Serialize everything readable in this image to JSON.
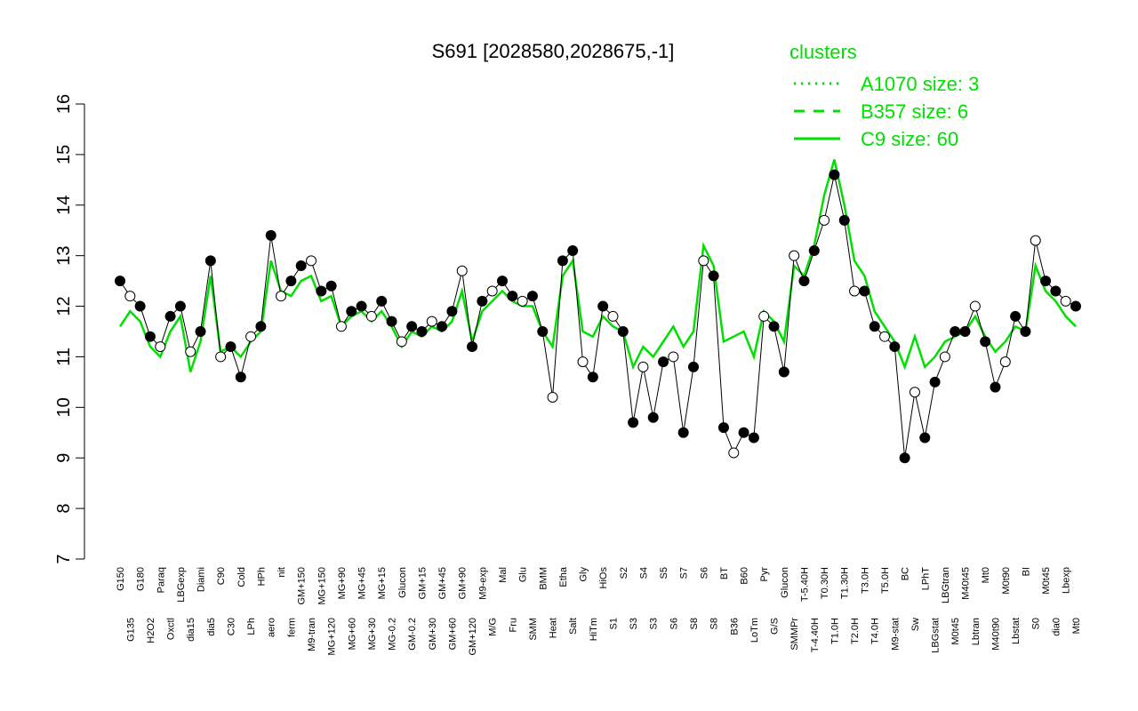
{
  "chart_data": {
    "type": "line",
    "title": "S691 [2028580,2028675,-1]",
    "legend_title": "clusters",
    "legend": [
      {
        "name": "A1070 size: 3",
        "dash": "2,6"
      },
      {
        "name": "B357 size: 6",
        "dash": "12,10"
      },
      {
        "name": "C9 size: 60",
        "dash": "none"
      }
    ],
    "legend_color": "#00e000",
    "ylim": [
      7,
      16
    ],
    "yticks": [
      7,
      8,
      9,
      10,
      11,
      12,
      13,
      14,
      15,
      16
    ],
    "categories": [
      "G150",
      "G135",
      "G180",
      "H2O2",
      "Paraq",
      "Oxctl",
      "LBGexp",
      "dia15",
      "Diami",
      "dia5",
      "C90",
      "C30",
      "Cold",
      "LPh",
      "HPh",
      "aero",
      "nit",
      "ferm",
      "GM+150",
      "M9-tran",
      "MG+150",
      "MG+120",
      "MG+90",
      "MG+60",
      "MG+45",
      "MG+30",
      "MG+15",
      "MG-0.2",
      "Glucon",
      "GM-0.2",
      "GM+15",
      "GM+30",
      "GM+45",
      "GM+60",
      "GM+90",
      "GM+120",
      "M9-exp",
      "M/G",
      "Mal",
      "Fru",
      "Glu",
      "SMM",
      "BMM",
      "Heat",
      "Etha",
      "Salt",
      "Gly",
      "HiTm",
      "HiOs",
      "S1",
      "S2",
      "S3",
      "S4",
      "S3",
      "S5",
      "S6",
      "S7",
      "S8",
      "S6",
      "S8",
      "BT",
      "B36",
      "B60",
      "LoTm",
      "Pyr",
      "G/S",
      "Glucon",
      "SMMPr",
      "T-5.40H",
      "T-4.40H",
      "T0.30H",
      "T1.0H",
      "T1.30H",
      "T2.0H",
      "T3.0H",
      "T4.0H",
      "T5.0H",
      "M9-stat",
      "BC",
      "Sw",
      "LPhT",
      "LBGstat",
      "LBGtran",
      "M0t45",
      "M40t45",
      "Lbtran",
      "Mt0",
      "M40t90",
      "M0t90",
      "Lbstat",
      "BI",
      "S0",
      "M0t45",
      "dia0",
      "Lbexp",
      "Mt0"
    ],
    "series": [
      {
        "name": "points",
        "color": "#000000",
        "values": [
          12.5,
          12.2,
          12.0,
          11.4,
          11.2,
          11.8,
          12.0,
          11.1,
          11.5,
          12.9,
          11.0,
          11.2,
          10.6,
          11.4,
          11.6,
          13.4,
          12.2,
          12.5,
          12.8,
          12.9,
          12.3,
          12.4,
          11.6,
          11.9,
          12.0,
          11.8,
          12.1,
          11.7,
          11.3,
          11.6,
          11.5,
          11.7,
          11.6,
          11.9,
          12.7,
          11.2,
          12.1,
          12.3,
          12.5,
          12.2,
          12.1,
          12.2,
          11.5,
          10.2,
          12.9,
          13.1,
          10.9,
          10.6,
          12.0,
          11.8,
          11.5,
          9.7,
          10.8,
          9.8,
          10.9,
          11.0,
          9.5,
          10.8,
          12.9,
          12.6,
          9.6,
          9.1,
          9.5,
          9.4,
          11.8,
          11.6,
          10.7,
          13.0,
          12.5,
          13.1,
          13.7,
          14.6,
          13.7,
          12.3,
          12.3,
          11.6,
          11.4,
          11.2,
          9.0,
          10.3,
          9.4,
          10.5,
          11.0,
          11.5,
          11.5,
          12.0,
          11.3,
          10.4,
          10.9,
          11.8,
          11.5,
          13.3,
          12.5,
          12.3,
          12.1,
          12.0
        ]
      },
      {
        "name": "C9",
        "color": "#00e000",
        "values": [
          11.6,
          11.9,
          11.7,
          11.2,
          11.0,
          11.5,
          11.8,
          10.7,
          11.3,
          12.6,
          11.1,
          11.2,
          11.0,
          11.3,
          11.5,
          12.9,
          12.3,
          12.2,
          12.5,
          12.6,
          12.1,
          12.2,
          11.6,
          11.8,
          11.9,
          11.7,
          11.9,
          11.6,
          11.2,
          11.5,
          11.4,
          11.6,
          11.5,
          11.7,
          12.3,
          11.3,
          11.9,
          12.1,
          12.3,
          12.1,
          12.0,
          12.0,
          11.5,
          11.2,
          12.6,
          12.9,
          11.5,
          11.4,
          11.8,
          11.6,
          11.5,
          10.8,
          11.2,
          11.0,
          11.3,
          11.6,
          11.2,
          11.5,
          13.2,
          12.8,
          11.3,
          11.4,
          11.5,
          11.0,
          11.9,
          11.7,
          11.3,
          12.8,
          12.6,
          13.2,
          14.2,
          14.9,
          14.0,
          12.9,
          12.6,
          11.9,
          11.6,
          11.3,
          10.8,
          11.4,
          10.8,
          11.0,
          11.3,
          11.4,
          11.5,
          11.8,
          11.4,
          11.1,
          11.3,
          11.6,
          11.5,
          12.8,
          12.3,
          12.1,
          11.8,
          11.6
        ]
      }
    ]
  }
}
